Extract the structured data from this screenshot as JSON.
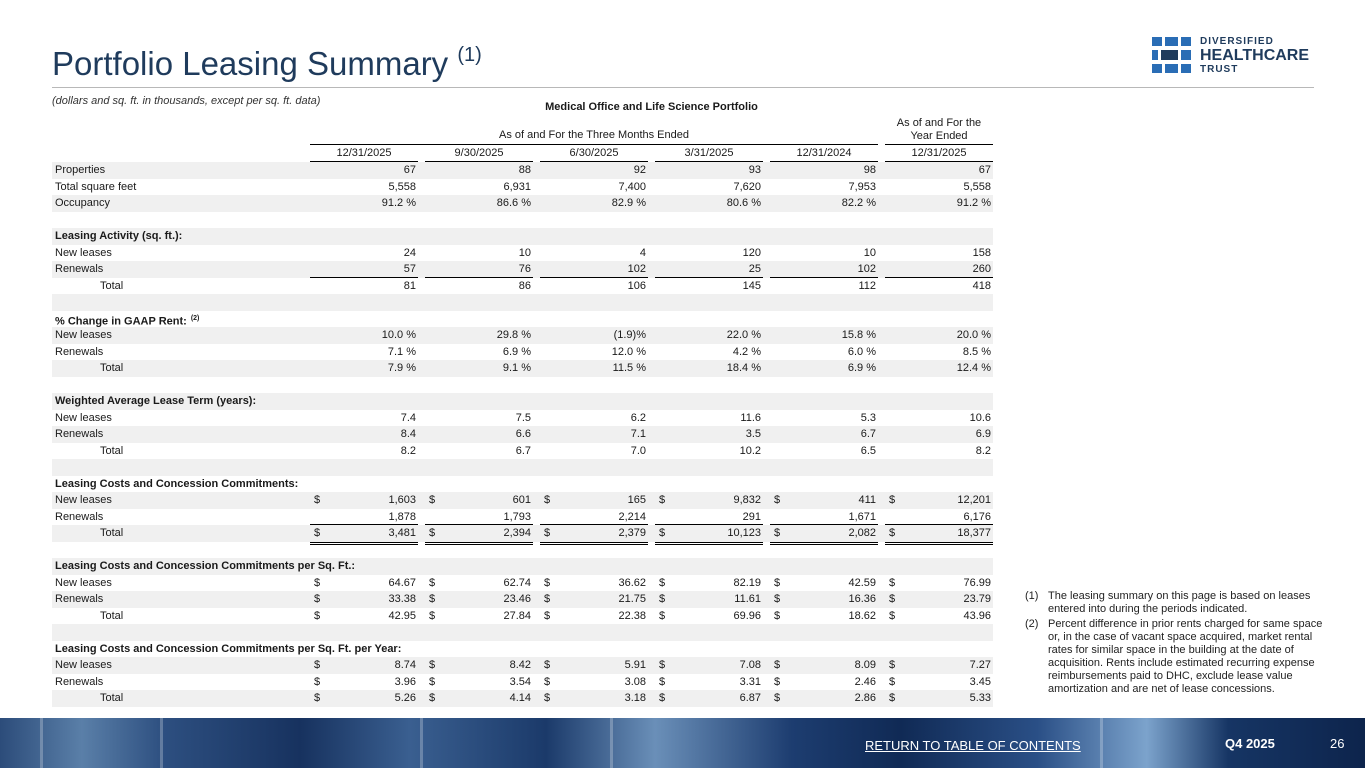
{
  "header": {
    "title": "Portfolio Leasing Summary",
    "title_note": "(1)",
    "subtitle": "(dollars and sq. ft. in thousands, except per sq. ft. data)"
  },
  "logo": {
    "line1": "DIVERSIFIED",
    "line2": "HEALTHCARE",
    "line3": "TRUST"
  },
  "table": {
    "title": "Medical Office and Life Science Portfolio",
    "group_header": "As of and For the Three Months Ended",
    "year_header": "As of and For the Year Ended",
    "columns": [
      "12/31/2025",
      "9/30/2025",
      "6/30/2025",
      "3/31/2025",
      "12/31/2024",
      "12/31/2025"
    ],
    "rows": [
      {
        "label": "Properties",
        "cells": [
          "67",
          "88",
          "92",
          "93",
          "98",
          "67"
        ]
      },
      {
        "label": "Total square feet",
        "cells": [
          "5,558",
          "6,931",
          "7,400",
          "7,620",
          "7,953",
          "5,558"
        ]
      },
      {
        "label": "Occupancy",
        "cells": [
          "91.2 %",
          "86.6 %",
          "82.9 %",
          "80.6 %",
          "82.2 %",
          "91.2 %"
        ]
      },
      null,
      {
        "label": "Leasing Activity (sq. ft.):",
        "heading": true
      },
      {
        "label": "New leases",
        "cells": [
          "24",
          "10",
          "4",
          "120",
          "10",
          "158"
        ]
      },
      {
        "label": "Renewals",
        "cells": [
          "57",
          "76",
          "102",
          "25",
          "102",
          "260"
        ]
      },
      {
        "label": "Total",
        "indent": true,
        "double_rule": true,
        "cells": [
          "81",
          "86",
          "106",
          "145",
          "112",
          "418"
        ]
      },
      null,
      {
        "label": "% Change in GAAP Rent:",
        "note": "(2)",
        "heading": true
      },
      {
        "label": "New leases",
        "cells": [
          "10.0 %",
          "29.8 %",
          "(1.9)%",
          "22.0 %",
          "15.8 %",
          "20.0 %"
        ]
      },
      {
        "label": "Renewals",
        "cells": [
          "7.1 %",
          "6.9 %",
          "12.0 %",
          "4.2 %",
          "6.0 %",
          "8.5 %"
        ]
      },
      {
        "label": "Total",
        "indent": true,
        "cells": [
          "7.9 %",
          "9.1 %",
          "11.5 %",
          "18.4 %",
          "6.9 %",
          "12.4 %"
        ]
      },
      null,
      {
        "label": "Weighted Average Lease Term (years):",
        "heading": true
      },
      {
        "label": "New leases",
        "cells": [
          "7.4",
          "7.5",
          "6.2",
          "11.6",
          "5.3",
          "10.6"
        ]
      },
      {
        "label": "Renewals",
        "cells": [
          "8.4",
          "6.6",
          "7.1",
          "3.5",
          "6.7",
          "6.9"
        ]
      },
      {
        "label": "Total",
        "indent": true,
        "cells": [
          "8.2",
          "6.7",
          "7.0",
          "10.2",
          "6.5",
          "8.2"
        ]
      },
      null,
      {
        "label": "Leasing Costs and Concession Commitments:",
        "heading": true
      },
      {
        "label": "New leases",
        "symbol": "$",
        "cells": [
          "1,603",
          "601",
          "165",
          "9,832",
          "411",
          "12,201"
        ]
      },
      {
        "label": "Renewals",
        "cells": [
          "1,878",
          "1,793",
          "2,214",
          "291",
          "1,671",
          "6,176"
        ]
      },
      {
        "label": "Total",
        "indent": true,
        "double_rule": true,
        "symbol": "$",
        "cells": [
          "3,481",
          "2,394",
          "2,379",
          "10,123",
          "2,082",
          "18,377"
        ]
      },
      null,
      {
        "label": "Leasing Costs and Concession Commitments per Sq. Ft.:",
        "heading": true
      },
      {
        "label": "New leases",
        "symbol": "$",
        "cells": [
          "64.67",
          "62.74",
          "36.62",
          "82.19",
          "42.59",
          "76.99"
        ]
      },
      {
        "label": "Renewals",
        "symbol": "$",
        "cells": [
          "33.38",
          "23.46",
          "21.75",
          "11.61",
          "16.36",
          "23.79"
        ]
      },
      {
        "label": "Total",
        "indent": true,
        "symbol": "$",
        "cells": [
          "42.95",
          "27.84",
          "22.38",
          "69.96",
          "18.62",
          "43.96"
        ]
      },
      null,
      {
        "label": "Leasing Costs and Concession Commitments per Sq. Ft. per Year:",
        "heading": true
      },
      {
        "label": "New leases",
        "symbol": "$",
        "cells": [
          "8.74",
          "8.42",
          "5.91",
          "7.08",
          "8.09",
          "7.27"
        ]
      },
      {
        "label": "Renewals",
        "symbol": "$",
        "cells": [
          "3.96",
          "3.54",
          "3.08",
          "3.31",
          "2.46",
          "3.45"
        ]
      },
      {
        "label": "Total",
        "indent": true,
        "symbol": "$",
        "cells": [
          "5.26",
          "4.14",
          "3.18",
          "6.87",
          "2.86",
          "5.33"
        ]
      }
    ]
  },
  "footnotes": [
    {
      "mark": "(1)",
      "text": "The leasing summary on this page is based on leases entered into during the periods indicated."
    },
    {
      "mark": "(2)",
      "text": "Percent difference in prior rents charged for same space or, in the case of vacant space acquired, market rental rates for similar space in the building at the date of acquisition. Rents include estimated recurring expense reimbursements paid to DHC, exclude lease value amortization and are net of lease concessions."
    }
  ],
  "footer": {
    "link": "RETURN TO TABLE OF CONTENTS",
    "quarter": "Q4 2025",
    "page": "26"
  }
}
